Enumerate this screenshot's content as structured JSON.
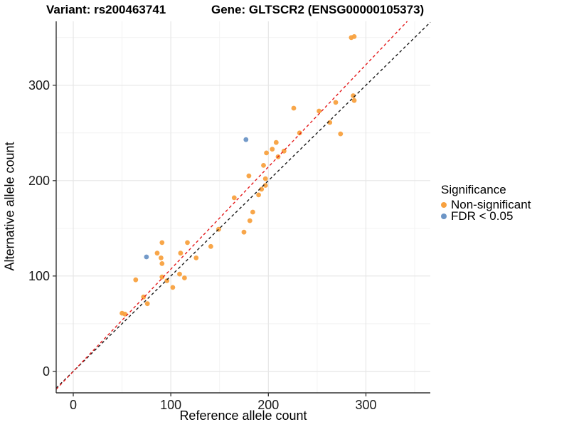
{
  "header": {
    "variant_title": "Variant: rs200463741",
    "gene_title": "Gene: GLTSCR2 (ENSG00000105373)"
  },
  "chart_data": {
    "type": "scatter",
    "xlabel": "Reference allele count",
    "ylabel": "Alternative allele count",
    "xlim": [
      -17.5,
      366
    ],
    "ylim": [
      -22.5,
      367
    ],
    "x_ticks": [
      0,
      100,
      200,
      300
    ],
    "y_ticks": [
      0,
      100,
      200,
      300
    ],
    "x_minor_gridlines": [
      50,
      150,
      250,
      350
    ],
    "y_minor_gridlines": [
      50,
      150,
      250,
      350
    ],
    "grid": true,
    "legend_position": "right",
    "series": [
      {
        "name": "Non-significant",
        "color": "#F8A13F",
        "points": [
          [
            50,
            61
          ],
          [
            53,
            60
          ],
          [
            64,
            96
          ],
          [
            72,
            78
          ],
          [
            76,
            71
          ],
          [
            86,
            124
          ],
          [
            90,
            119
          ],
          [
            91,
            113
          ],
          [
            91,
            99
          ],
          [
            91,
            135
          ],
          [
            96,
            95
          ],
          [
            102,
            88
          ],
          [
            109,
            102
          ],
          [
            110,
            124
          ],
          [
            114,
            98
          ],
          [
            117,
            135
          ],
          [
            126,
            119
          ],
          [
            141,
            131
          ],
          [
            149,
            149
          ],
          [
            165,
            182
          ],
          [
            175,
            146
          ],
          [
            180,
            205
          ],
          [
            181,
            158
          ],
          [
            184,
            167
          ],
          [
            190,
            185
          ],
          [
            193,
            191
          ],
          [
            195,
            216
          ],
          [
            197,
            202
          ],
          [
            197,
            195
          ],
          [
            198,
            229
          ],
          [
            204,
            233
          ],
          [
            208,
            240
          ],
          [
            210,
            225
          ],
          [
            216,
            231
          ],
          [
            226,
            276
          ],
          [
            232,
            250
          ],
          [
            252,
            273
          ],
          [
            263,
            261
          ],
          [
            269,
            282
          ],
          [
            274,
            249
          ],
          [
            285,
            350
          ],
          [
            287,
            289
          ],
          [
            288,
            284
          ],
          [
            288,
            351
          ]
        ]
      },
      {
        "name": "FDR < 0.05",
        "color": "#6C95C6",
        "points": [
          [
            75,
            120
          ],
          [
            177,
            243
          ]
        ]
      }
    ],
    "reference_lines": [
      {
        "name": "identity-line",
        "color": "#1A1A1A",
        "style": "dashed",
        "slope": 1,
        "intercept": 0
      },
      {
        "name": "ratio-line",
        "color": "#E41A1C",
        "style": "dashed",
        "slope": 1.072,
        "intercept": 0
      }
    ]
  },
  "legend": {
    "title": "Significance",
    "items": [
      {
        "label": "Non-significant",
        "color": "#F8A13F"
      },
      {
        "label": "FDR < 0.05",
        "color": "#6C95C6"
      }
    ]
  },
  "style": {
    "grid_major_color": "#E6E6E6",
    "grid_minor_color": "#F2F2F2",
    "axis_color": "#333333"
  }
}
